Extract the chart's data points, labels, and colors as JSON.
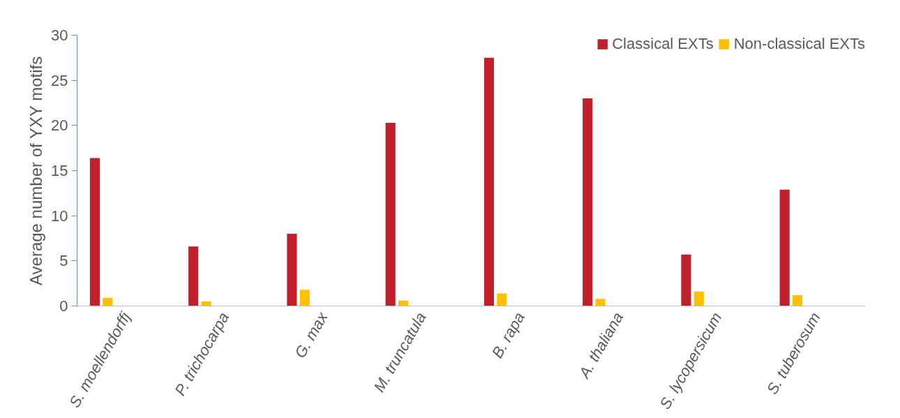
{
  "chart_data": {
    "type": "bar",
    "ylabel": "Average number of YXY motifs",
    "categories": [
      "S. moellendorffj",
      "P. trichocarpa",
      "G. max",
      "M. truncatula",
      "B. rapa",
      "A. thaliana",
      "S. lycopersicum",
      "S. tuberosum"
    ],
    "series": [
      {
        "name": "Classical EXTs",
        "color": "#c0202a",
        "values": [
          16.4,
          6.6,
          8.0,
          20.3,
          27.5,
          23.0,
          5.7,
          12.9
        ]
      },
      {
        "name": "Non-classical EXTs",
        "color": "#ffc000",
        "values": [
          0.9,
          0.5,
          1.8,
          0.6,
          1.4,
          0.8,
          1.6,
          1.2
        ]
      }
    ],
    "ylim": [
      0,
      30
    ],
    "yticks": [
      0,
      5,
      10,
      15,
      20,
      25,
      30
    ],
    "grid": false,
    "legend": "top right"
  }
}
